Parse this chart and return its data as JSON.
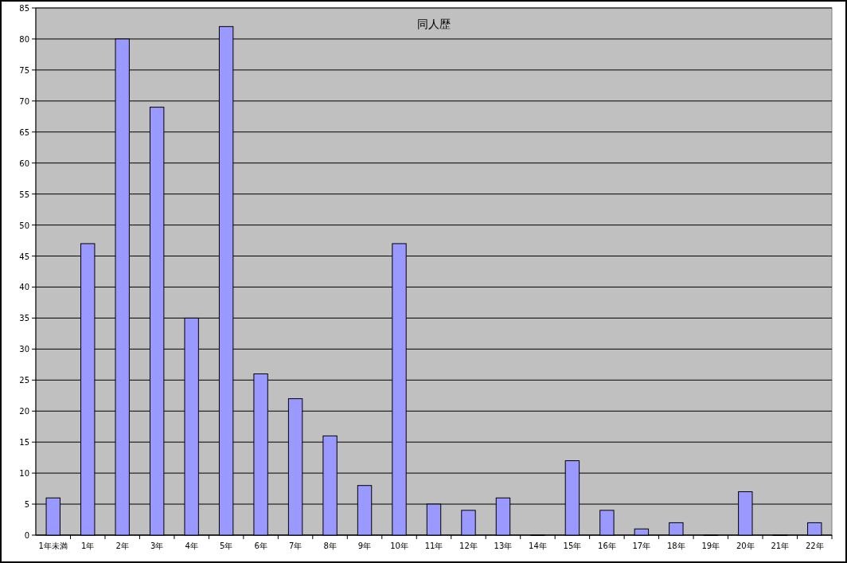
{
  "chart_data": {
    "type": "bar",
    "title": "同人歴",
    "categories": [
      "1年未満",
      "1年",
      "2年",
      "3年",
      "4年",
      "5年",
      "6年",
      "7年",
      "8年",
      "9年",
      "10年",
      "11年",
      "12年",
      "13年",
      "14年",
      "15年",
      "16年",
      "17年",
      "18年",
      "19年",
      "20年",
      "21年",
      "22年"
    ],
    "values": [
      6,
      47,
      80,
      69,
      35,
      82,
      26,
      22,
      16,
      8,
      47,
      5,
      4,
      6,
      0,
      12,
      4,
      1,
      2,
      0,
      7,
      0,
      2
    ],
    "color": "#9999ff",
    "ylim": [
      0,
      85
    ],
    "yticks": [
      0,
      5,
      10,
      15,
      20,
      25,
      30,
      35,
      40,
      45,
      50,
      55,
      60,
      65,
      70,
      75,
      80,
      85
    ],
    "grid": "y"
  }
}
